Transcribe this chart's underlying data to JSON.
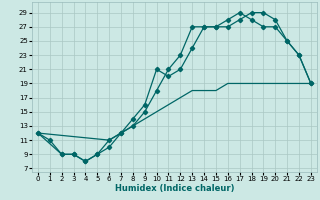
{
  "xlabel": "Humidex (Indice chaleur)",
  "bg_color": "#cce8e4",
  "grid_color": "#aac8c4",
  "line_color": "#006666",
  "xlim": [
    -0.5,
    23.5
  ],
  "ylim": [
    6.5,
    30.5
  ],
  "xticks": [
    0,
    1,
    2,
    3,
    4,
    5,
    6,
    7,
    8,
    9,
    10,
    11,
    12,
    13,
    14,
    15,
    16,
    17,
    18,
    19,
    20,
    21,
    22,
    23
  ],
  "yticks": [
    7,
    9,
    11,
    13,
    15,
    17,
    19,
    21,
    23,
    25,
    27,
    29
  ],
  "line1_x": [
    0,
    1,
    2,
    3,
    4,
    5,
    6,
    7,
    8,
    9,
    10,
    11,
    12,
    13,
    14,
    15,
    16,
    17,
    18,
    19,
    20,
    21,
    22,
    23
  ],
  "line1_y": [
    12,
    11,
    9,
    9,
    8,
    9,
    11,
    12,
    14,
    16,
    21,
    20,
    21,
    24,
    27,
    27,
    27,
    28,
    29,
    29,
    28,
    25,
    23,
    19
  ],
  "line2_x": [
    0,
    2,
    3,
    4,
    5,
    6,
    7,
    8,
    9,
    10,
    11,
    12,
    13,
    14,
    15,
    16,
    17,
    18,
    19,
    20,
    21,
    22,
    23
  ],
  "line2_y": [
    12,
    9,
    9,
    8,
    9,
    10,
    12,
    13,
    15,
    18,
    21,
    23,
    27,
    27,
    27,
    28,
    29,
    28,
    27,
    27,
    25,
    23,
    19
  ],
  "line3_x": [
    0,
    6,
    7,
    8,
    9,
    10,
    11,
    12,
    13,
    14,
    15,
    16,
    17,
    18,
    19,
    20,
    21,
    22,
    23
  ],
  "line3_y": [
    12,
    11,
    12,
    13,
    14,
    15,
    16,
    17,
    18,
    18,
    18,
    19,
    19,
    19,
    19,
    19,
    19,
    19,
    19
  ]
}
